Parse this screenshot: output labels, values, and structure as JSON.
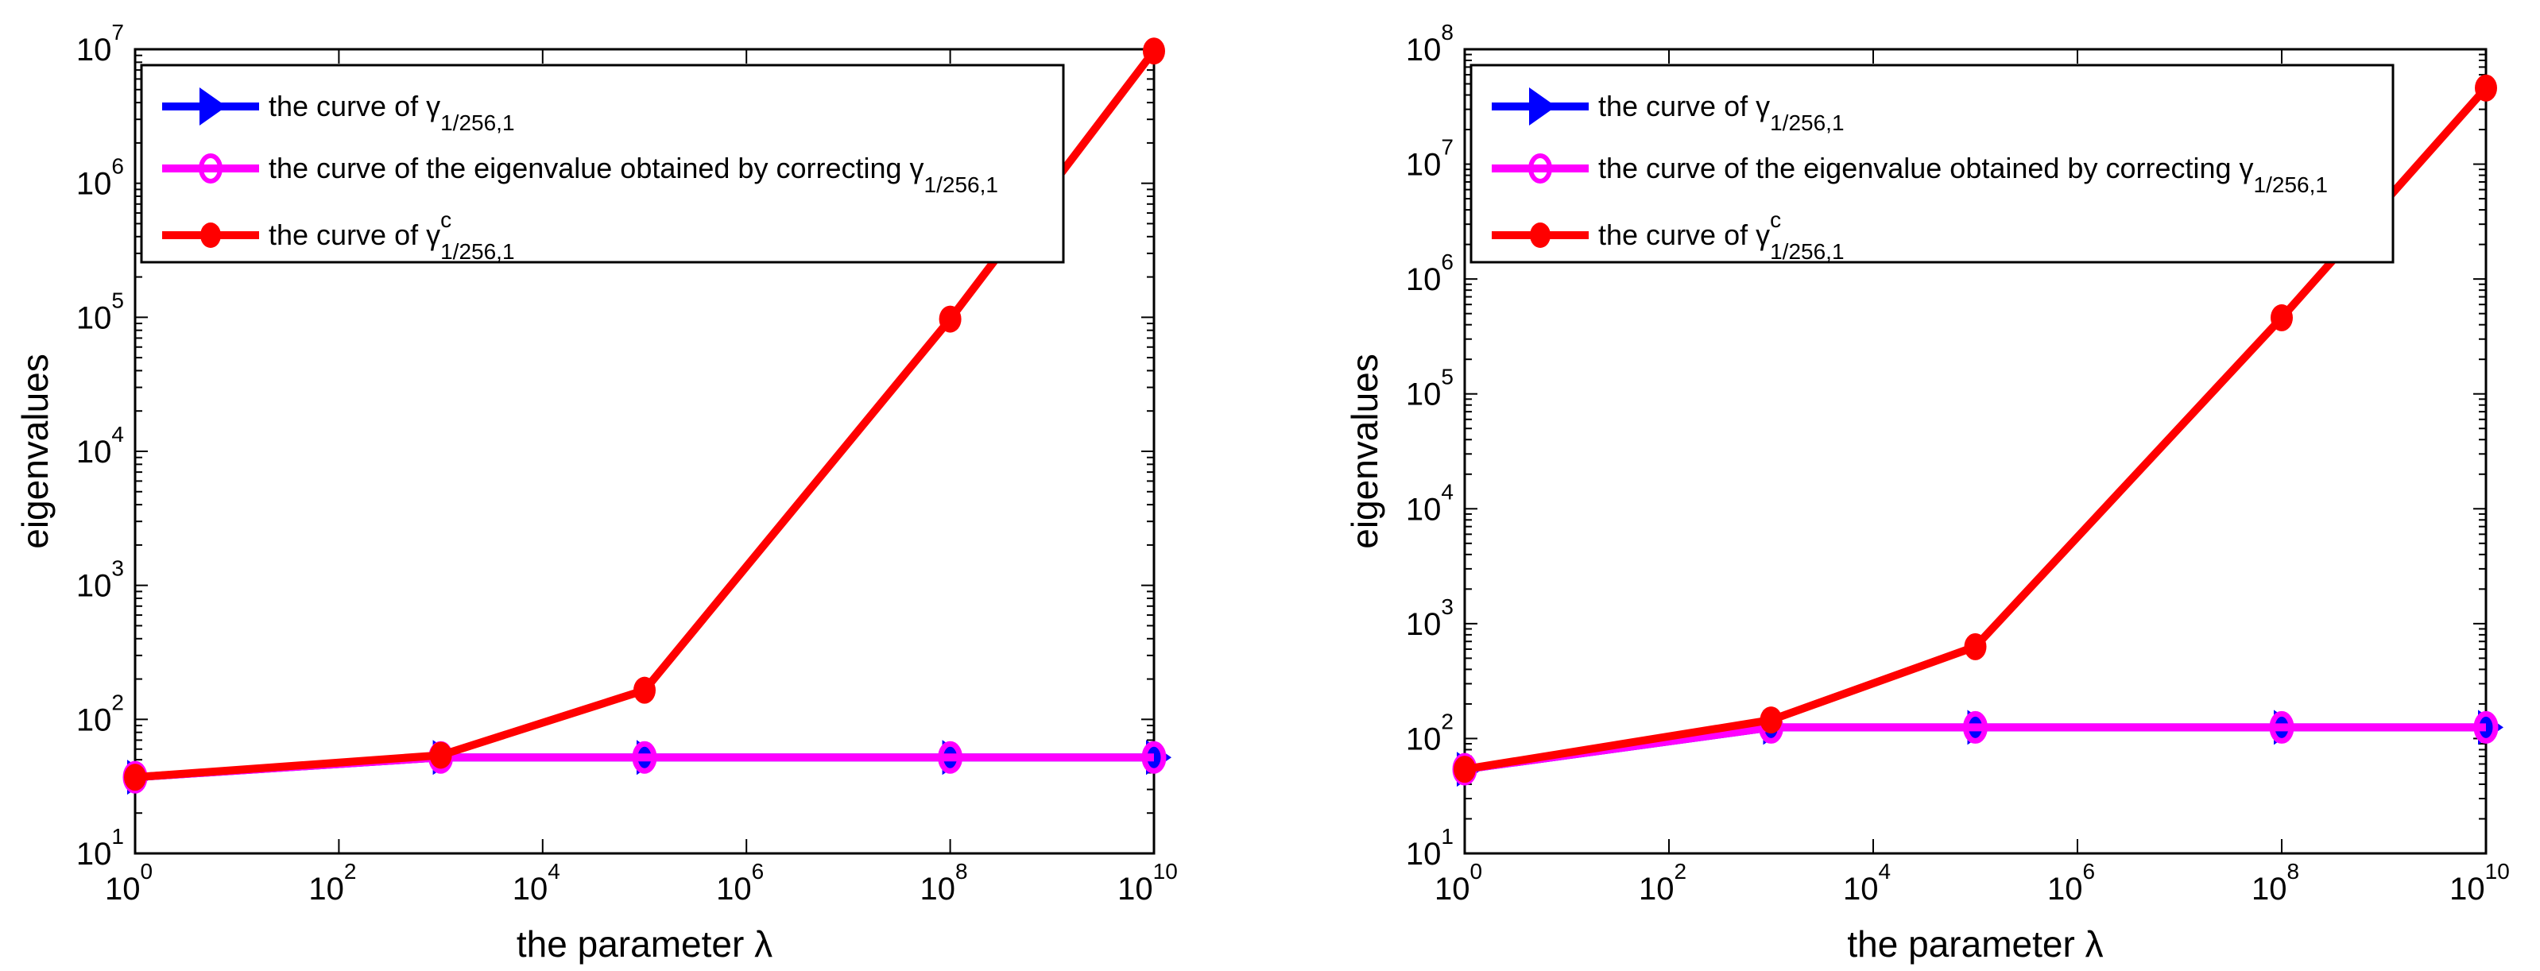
{
  "chart_data": [
    {
      "type": "line",
      "panel": "left",
      "title": "",
      "xlabel": "the parameter λ",
      "ylabel": "eigenvalues",
      "xscale": "log",
      "yscale": "log",
      "xlim": [
        1,
        10000000000
      ],
      "ylim": [
        10,
        10000000
      ],
      "x_tick_exponents": [
        0,
        2,
        4,
        6,
        8,
        10
      ],
      "y_tick_exponents": [
        1,
        2,
        3,
        4,
        5,
        6,
        7
      ],
      "grid": false,
      "legend_position": "upper left (inside)",
      "x": [
        1,
        1000,
        100000,
        100000000,
        10000000000
      ],
      "series": [
        {
          "name": "the curve of γ_{1/256,1}",
          "color": "#0000ff",
          "marker": "triangle-right",
          "values": [
            37,
            52,
            52,
            52,
            52
          ]
        },
        {
          "name": "the curve of the eigenvalue obtained by correcting γ_{1/256,1}",
          "color": "#ff00ff",
          "marker": "open-circle",
          "values": [
            37,
            52,
            52,
            52,
            52
          ]
        },
        {
          "name": "the curve of γ^c_{1/256,1}",
          "color": "#ff0000",
          "marker": "filled-circle",
          "values": [
            37,
            54,
            165,
            97000,
            9700000
          ]
        }
      ]
    },
    {
      "type": "line",
      "panel": "right",
      "title": "",
      "xlabel": "the parameter λ",
      "ylabel": "eigenvalues",
      "xscale": "log",
      "yscale": "log",
      "xlim": [
        1,
        10000000000
      ],
      "ylim": [
        10,
        100000000
      ],
      "x_tick_exponents": [
        0,
        2,
        4,
        6,
        8,
        10
      ],
      "y_tick_exponents": [
        1,
        2,
        3,
        4,
        5,
        6,
        7,
        8
      ],
      "grid": false,
      "legend_position": "upper left (inside)",
      "x": [
        1,
        1000,
        100000,
        100000000,
        10000000000
      ],
      "series": [
        {
          "name": "the curve of γ_{1/256,1}",
          "color": "#0000ff",
          "marker": "triangle-right",
          "values": [
            54,
            125,
            125,
            125,
            125
          ]
        },
        {
          "name": "the curve of the eigenvalue obtained by correcting γ_{1/256,1}",
          "color": "#ff00ff",
          "marker": "open-circle",
          "values": [
            54,
            125,
            125,
            125,
            125
          ]
        },
        {
          "name": "the curve of γ^c_{1/256,1}",
          "color": "#ff0000",
          "marker": "filled-circle",
          "values": [
            54,
            145,
            630,
            460000,
            46000000
          ]
        }
      ]
    }
  ],
  "legend": {
    "prefix_1": "the curve of ",
    "prefix_2": "the curve of the eigenvalue obtained by correcting ",
    "prefix_3": "the curve of ",
    "symbol": "γ",
    "subscript": "1/256,1",
    "superscript_3": "c"
  },
  "axes_text": {
    "xlabel": "the parameter λ",
    "ylabel": "eigenvalues",
    "tick_base": "10"
  }
}
